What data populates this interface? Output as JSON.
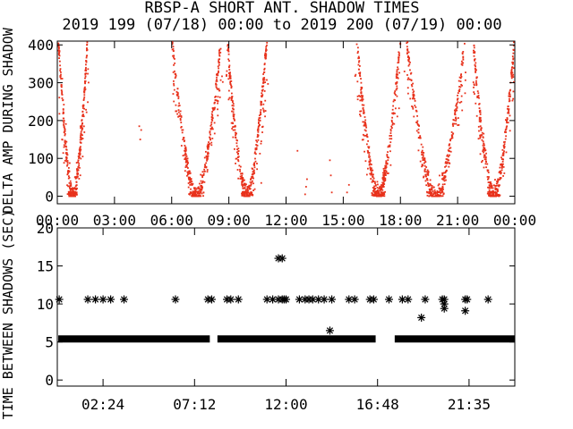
{
  "chart_data": [
    {
      "type": "scatter",
      "title": "RBSP-A SHORT ANT. SHADOW TIMES",
      "subtitle": "2019 199 (07/18) 00:00 to 2019 200 (07/19) 00:00",
      "ylabel": "DELTA AMP DURING SHADOW",
      "xlabel": "",
      "x_range_hours": [
        0,
        24
      ],
      "ylim": [
        -20,
        410
      ],
      "yticks": [
        "0",
        "100",
        "200",
        "300",
        "400"
      ],
      "xticks": [
        "00:00",
        "03:00",
        "06:00",
        "09:00",
        "12:00",
        "15:00",
        "18:00",
        "21:00",
        "00:00"
      ],
      "grid": false,
      "legend": "none",
      "point_color": "#e8321c",
      "series": [
        {
          "arcs": [
            {
              "start": 0.05,
              "end": 1.6,
              "peak": 420
            },
            {
              "start": 6.0,
              "end": 8.6,
              "peak": 420
            },
            {
              "start": 8.9,
              "end": 11.0,
              "peak": 420
            },
            {
              "start": 15.7,
              "end": 18.0,
              "peak": 420
            },
            {
              "start": 18.3,
              "end": 21.4,
              "peak": 420
            },
            {
              "start": 21.8,
              "end": 24.0,
              "peak": 420
            }
          ],
          "scattered": [
            {
              "x": 4.3,
              "y": 185
            },
            {
              "x": 4.35,
              "y": 150
            },
            {
              "x": 4.4,
              "y": 175
            },
            {
              "x": 13.0,
              "y": 5
            },
            {
              "x": 13.05,
              "y": 25
            },
            {
              "x": 13.1,
              "y": 45
            },
            {
              "x": 14.3,
              "y": 95
            },
            {
              "x": 14.35,
              "y": 55
            },
            {
              "x": 14.4,
              "y": 10
            },
            {
              "x": 15.2,
              "y": 10
            },
            {
              "x": 15.3,
              "y": 30
            },
            {
              "x": 12.6,
              "y": 120
            },
            {
              "x": 10.7,
              "y": 35
            }
          ]
        }
      ]
    },
    {
      "type": "scatter",
      "title": "",
      "ylabel": "TIME BETWEEN SHADOWS (SEC)",
      "xlabel": "",
      "x_range_hours": [
        0,
        24
      ],
      "ylim": [
        -0.8,
        20
      ],
      "yticks": [
        "0",
        "5",
        "10",
        "15",
        "20"
      ],
      "xticks": [
        "02:24",
        "07:12",
        "12:00",
        "16:48",
        "21:35"
      ],
      "grid": false,
      "legend": "none",
      "marker": "asterisk",
      "series": [
        {
          "baseline_value": 5.4,
          "baseline_segments": [
            [
              0.05,
              8.0
            ],
            [
              8.4,
              16.7
            ],
            [
              17.7,
              24.0
            ]
          ],
          "points": [
            {
              "x": 0.1,
              "y": 10.6
            },
            {
              "x": 1.6,
              "y": 10.6
            },
            {
              "x": 2.0,
              "y": 10.6
            },
            {
              "x": 2.4,
              "y": 10.6
            },
            {
              "x": 2.8,
              "y": 10.6
            },
            {
              "x": 3.5,
              "y": 10.6
            },
            {
              "x": 6.2,
              "y": 10.6
            },
            {
              "x": 7.9,
              "y": 10.6
            },
            {
              "x": 8.1,
              "y": 10.6
            },
            {
              "x": 8.9,
              "y": 10.6
            },
            {
              "x": 9.1,
              "y": 10.6
            },
            {
              "x": 9.5,
              "y": 10.6
            },
            {
              "x": 11.0,
              "y": 10.6
            },
            {
              "x": 11.3,
              "y": 10.6
            },
            {
              "x": 11.6,
              "y": 10.6
            },
            {
              "x": 11.8,
              "y": 10.6
            },
            {
              "x": 11.9,
              "y": 10.6
            },
            {
              "x": 12.0,
              "y": 10.6
            },
            {
              "x": 12.7,
              "y": 10.6
            },
            {
              "x": 13.0,
              "y": 10.6
            },
            {
              "x": 13.2,
              "y": 10.6
            },
            {
              "x": 13.4,
              "y": 10.6
            },
            {
              "x": 13.7,
              "y": 10.6
            },
            {
              "x": 14.0,
              "y": 10.6
            },
            {
              "x": 14.4,
              "y": 10.6
            },
            {
              "x": 15.3,
              "y": 10.6
            },
            {
              "x": 15.6,
              "y": 10.6
            },
            {
              "x": 16.4,
              "y": 10.6
            },
            {
              "x": 16.6,
              "y": 10.6
            },
            {
              "x": 17.4,
              "y": 10.6
            },
            {
              "x": 18.1,
              "y": 10.6
            },
            {
              "x": 18.4,
              "y": 10.6
            },
            {
              "x": 19.3,
              "y": 10.6
            },
            {
              "x": 20.2,
              "y": 10.6
            },
            {
              "x": 20.3,
              "y": 10.6
            },
            {
              "x": 21.4,
              "y": 10.6
            },
            {
              "x": 21.5,
              "y": 10.6
            },
            {
              "x": 22.6,
              "y": 10.6
            },
            {
              "x": 11.6,
              "y": 16.0
            },
            {
              "x": 11.8,
              "y": 16.0
            },
            {
              "x": 14.3,
              "y": 6.5
            },
            {
              "x": 19.1,
              "y": 8.2
            },
            {
              "x": 20.3,
              "y": 9.4
            },
            {
              "x": 20.3,
              "y": 10.0
            },
            {
              "x": 21.4,
              "y": 9.1
            }
          ]
        }
      ]
    }
  ]
}
